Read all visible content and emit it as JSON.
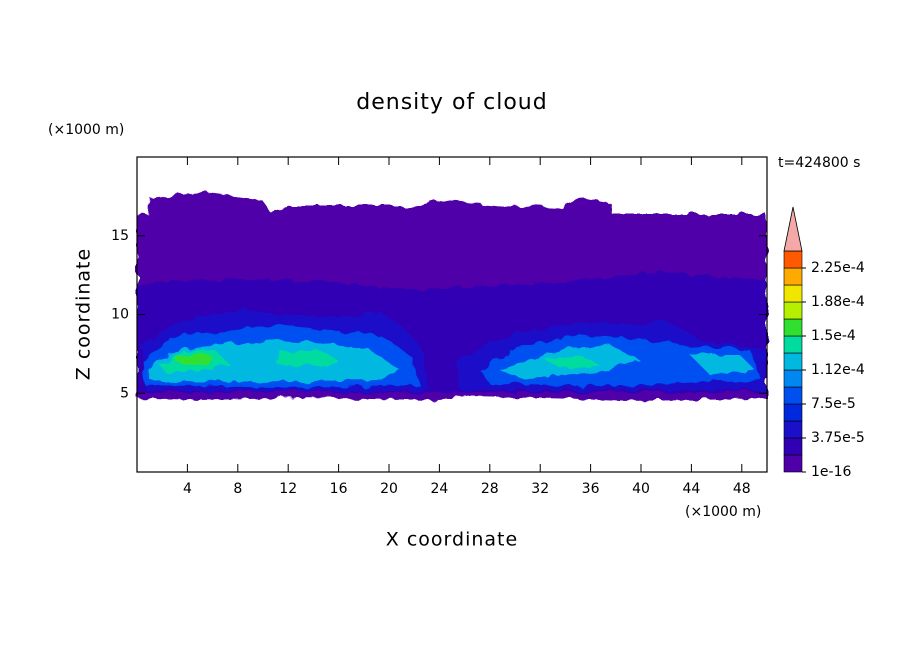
{
  "chart_data": {
    "type": "contour",
    "title": "density of cloud",
    "x_label": "X coordinate",
    "y_label": "Z coordinate",
    "x_unit": "(×1000 m)",
    "y_unit": "(×1000 m)",
    "annotation": "t=424800 s",
    "xlim": [
      0,
      50
    ],
    "ylim": [
      0,
      20
    ],
    "xticks": [
      4,
      8,
      12,
      16,
      20,
      24,
      28,
      32,
      36,
      40,
      44,
      48
    ],
    "yticks": [
      5,
      10,
      15
    ],
    "clim": [
      1e-16,
      0.00024375
    ],
    "cticks": [
      {
        "value": 1e-16,
        "label": "1e-16"
      },
      {
        "value": 3.75e-05,
        "label": "3.75e-5"
      },
      {
        "value": 7.5e-05,
        "label": "7.5e-5"
      },
      {
        "value": 0.0001125,
        "label": "1.12e-4"
      },
      {
        "value": 0.00015,
        "label": "1.5e-4"
      },
      {
        "value": 0.0001875,
        "label": "1.88e-4"
      },
      {
        "value": 0.000225,
        "label": "2.25e-4"
      }
    ],
    "colors": [
      "#5000a8",
      "#3200b4",
      "#1a10c8",
      "#0028dc",
      "#0050f0",
      "#0088f0",
      "#00b8e0",
      "#00dca0",
      "#30e030",
      "#b4f000",
      "#f0e600",
      "#ffaa00",
      "#ff5a00"
    ],
    "extend_color": "#f4a8a8"
  }
}
